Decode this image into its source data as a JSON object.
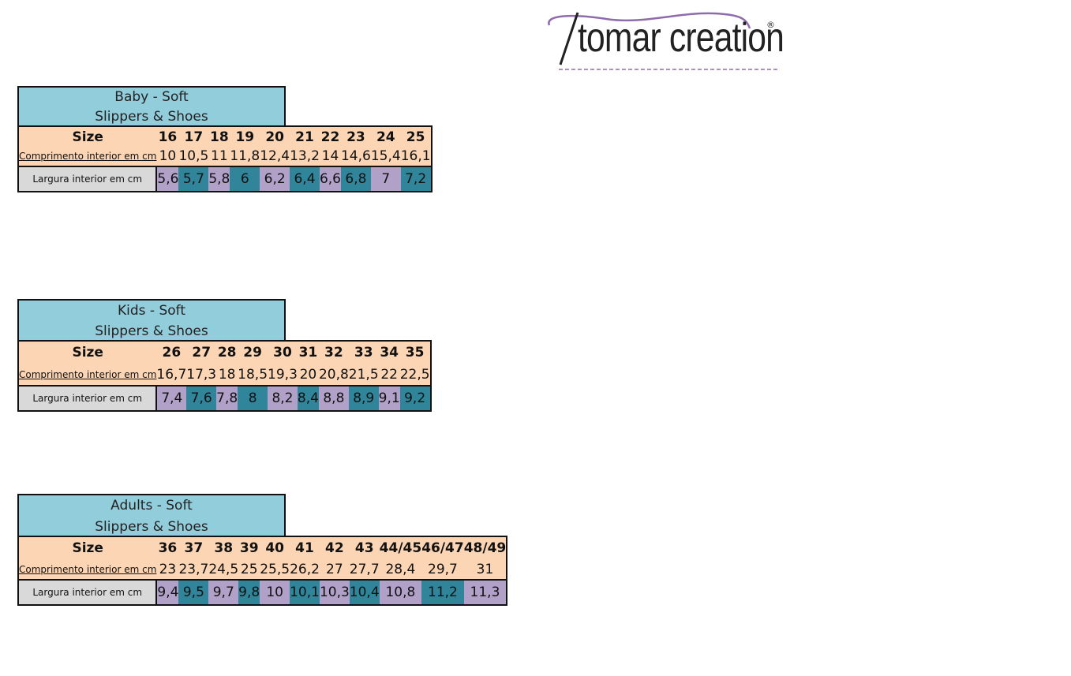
{
  "brand": {
    "name": "tomar creation",
    "mark": "®",
    "colors": {
      "swoosh": "#8e6bab",
      "text": "#222222"
    }
  },
  "colors": {
    "category": "#92cddc",
    "header": "#fcd5b4",
    "label": "#d9d9d9",
    "lavender": "#b1a0c7",
    "teal": "#31859b"
  },
  "sections": [
    {
      "title_line1": "Baby - Soft",
      "title_line2": "Slippers & Shoes",
      "size_label": "Size",
      "length_label": "Comprimento interior em cm",
      "width_label": "Largura interior em cm",
      "sizes": [
        "16",
        "17",
        "18",
        "19",
        "20",
        "21",
        "22",
        "23",
        "24",
        "25"
      ],
      "lengths": [
        "10",
        "10,5",
        "11",
        "11,8",
        "12,4",
        "13,2",
        "14",
        "14,6",
        "15,4",
        "16,1"
      ],
      "widths": [
        "5,6",
        "5,7",
        "5,8",
        "6",
        "6,2",
        "6,4",
        "6,6",
        "6,8",
        "7",
        "7,2"
      ]
    },
    {
      "title_line1": "Kids - Soft",
      "title_line2": "Slippers & Shoes",
      "size_label": "Size",
      "length_label": "Comprimento interior em cm",
      "width_label": "Largura interior em cm",
      "sizes": [
        "26",
        "27",
        "28",
        "29",
        "30",
        "31",
        "32",
        "33",
        "34",
        "35"
      ],
      "lengths": [
        "16,7",
        "17,3",
        "18",
        "18,5",
        "19,3",
        "20",
        "20,8",
        "21,5",
        "22",
        "22,5"
      ],
      "widths": [
        "7,4",
        "7,6",
        "7,8",
        "8",
        "8,2",
        "8,4",
        "8,8",
        "8,9",
        "9,1",
        "9,2"
      ]
    },
    {
      "title_line1": "Adults - Soft",
      "title_line2": "Slippers & Shoes",
      "size_label": "Size",
      "length_label": "Comprimento interior em cm",
      "width_label": "Largura interior em cm",
      "sizes": [
        "36",
        "37",
        "38",
        "39",
        "40",
        "41",
        "42",
        "43",
        "44/45",
        "46/47",
        "48/49"
      ],
      "lengths": [
        "23",
        "23,7",
        "24,5",
        "25",
        "25,5",
        "26,2",
        "27",
        "27,7",
        "28,4",
        "29,7",
        "31"
      ],
      "widths": [
        "9,4",
        "9,5",
        "9,7",
        "9,8",
        "10",
        "10,1",
        "10,3",
        "10,4",
        "10,8",
        "11,2",
        "11,3"
      ]
    }
  ]
}
